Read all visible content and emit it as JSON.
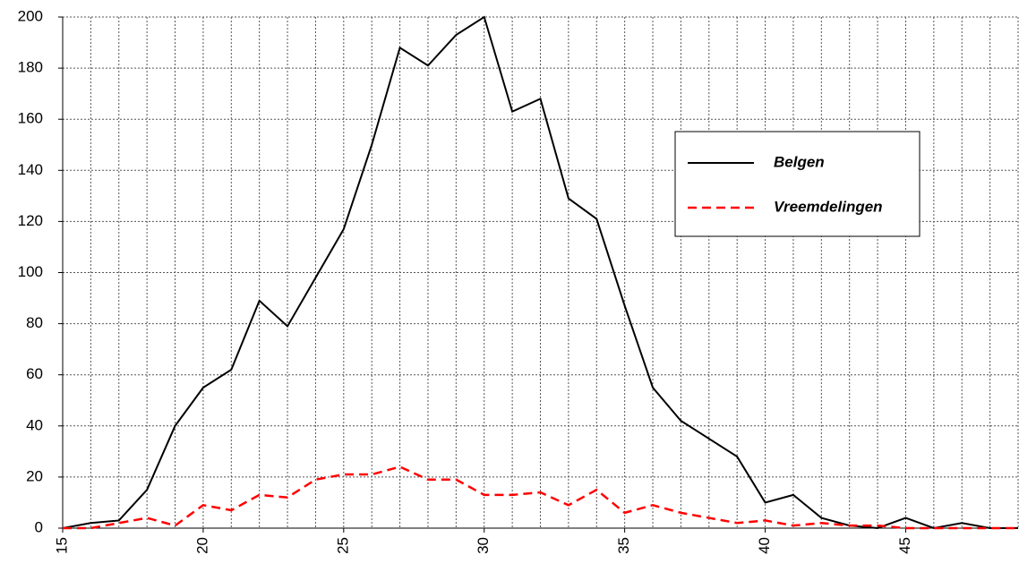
{
  "chart_data": {
    "type": "line",
    "x": [
      15,
      16,
      17,
      18,
      19,
      20,
      21,
      22,
      23,
      24,
      25,
      26,
      27,
      28,
      29,
      30,
      31,
      32,
      33,
      34,
      35,
      36,
      37,
      38,
      39,
      40,
      41,
      42,
      43,
      44,
      45,
      46,
      47,
      48,
      49
    ],
    "series": [
      {
        "name": "Belgen",
        "color": "#000000",
        "dash": false,
        "values": [
          0,
          2,
          3,
          15,
          40,
          55,
          62,
          89,
          79,
          98,
          117,
          150,
          188,
          181,
          193,
          200,
          163,
          168,
          129,
          121,
          87,
          55,
          42,
          35,
          28,
          10,
          13,
          4,
          1,
          0,
          4,
          0,
          2,
          0,
          0
        ]
      },
      {
        "name": "Vreemdelingen",
        "color": "#ff0000",
        "dash": true,
        "values": [
          0,
          0,
          2,
          4,
          1,
          9,
          7,
          13,
          12,
          19,
          21,
          21,
          24,
          19,
          19,
          13,
          13,
          14,
          9,
          15,
          6,
          9,
          6,
          4,
          2,
          3,
          1,
          2,
          1,
          1,
          0,
          0,
          0,
          0,
          0
        ]
      }
    ],
    "xlim": [
      15,
      49
    ],
    "xticks": [
      15,
      20,
      25,
      30,
      35,
      40,
      45
    ],
    "ylim": [
      0,
      200
    ],
    "yticks": [
      0,
      20,
      40,
      60,
      80,
      100,
      120,
      140,
      160,
      180,
      200
    ],
    "grid": true,
    "legend": "right"
  }
}
